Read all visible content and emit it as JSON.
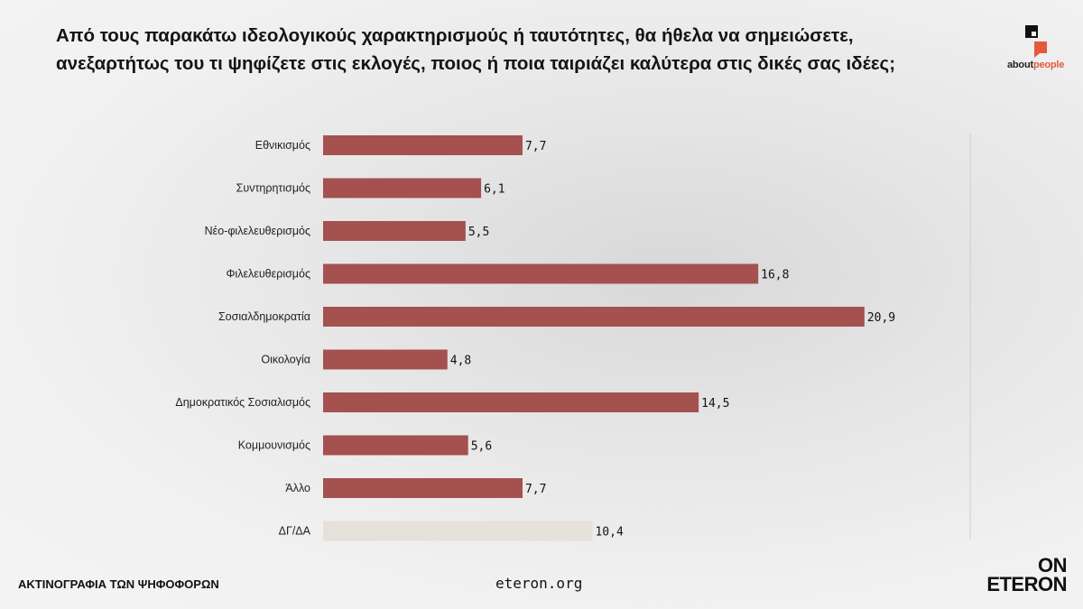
{
  "title_lines": [
    "Από τους παρακάτω ιδεολογικούς χαρακτηρισμούς  ή ταυτότητες, θα ήθελα να σημειώσετε,",
    "ανεξαρτήτως του τι ψηφίζετε στις εκλογές, ποιος ή ποια ταιριάζει καλύτερα στις δικές σας ιδέες;"
  ],
  "logo": {
    "prefix": "about",
    "accent": "people",
    "icon": "aboutpeople-logo-icon",
    "color": "#e35a3c"
  },
  "footer": {
    "left": "ΑΚΤΙΝΟΓΡΑΦΙΑ ΤΩΝ ΨΗΦΟΦΟΡΩΝ",
    "center": "eteron.org",
    "brand_line1": "ON",
    "brand_line2": "ETERON"
  },
  "colors": {
    "bar": "#a45150",
    "bar_dkna": "#e6e0da",
    "gridline": "#cfcfcf"
  },
  "chart_data": {
    "type": "bar",
    "orientation": "horizontal",
    "categories": [
      "Εθνικισμός",
      "Συντηρητισμός",
      "Νέο-φιλελευθερισμός",
      "Φιλελευθερισμός",
      "Σοσιαλδημοκρατία",
      "Οικολογία",
      "Δημοκρατικός Σοσιαλισμός",
      "Κομμουνισμός",
      "Άλλο",
      "ΔΓ/ΔΑ"
    ],
    "values": [
      7.7,
      6.1,
      5.5,
      16.8,
      20.9,
      4.8,
      14.5,
      5.6,
      7.7,
      10.4
    ],
    "value_labels": [
      "7,7",
      "6,1",
      "5,5",
      "16,8",
      "20,9",
      "4,8",
      "14,5",
      "5,6",
      "7,7",
      "10,4"
    ],
    "highlight_last_category": true,
    "xlim": [
      0,
      25
    ],
    "grid": false,
    "legend": "none"
  }
}
